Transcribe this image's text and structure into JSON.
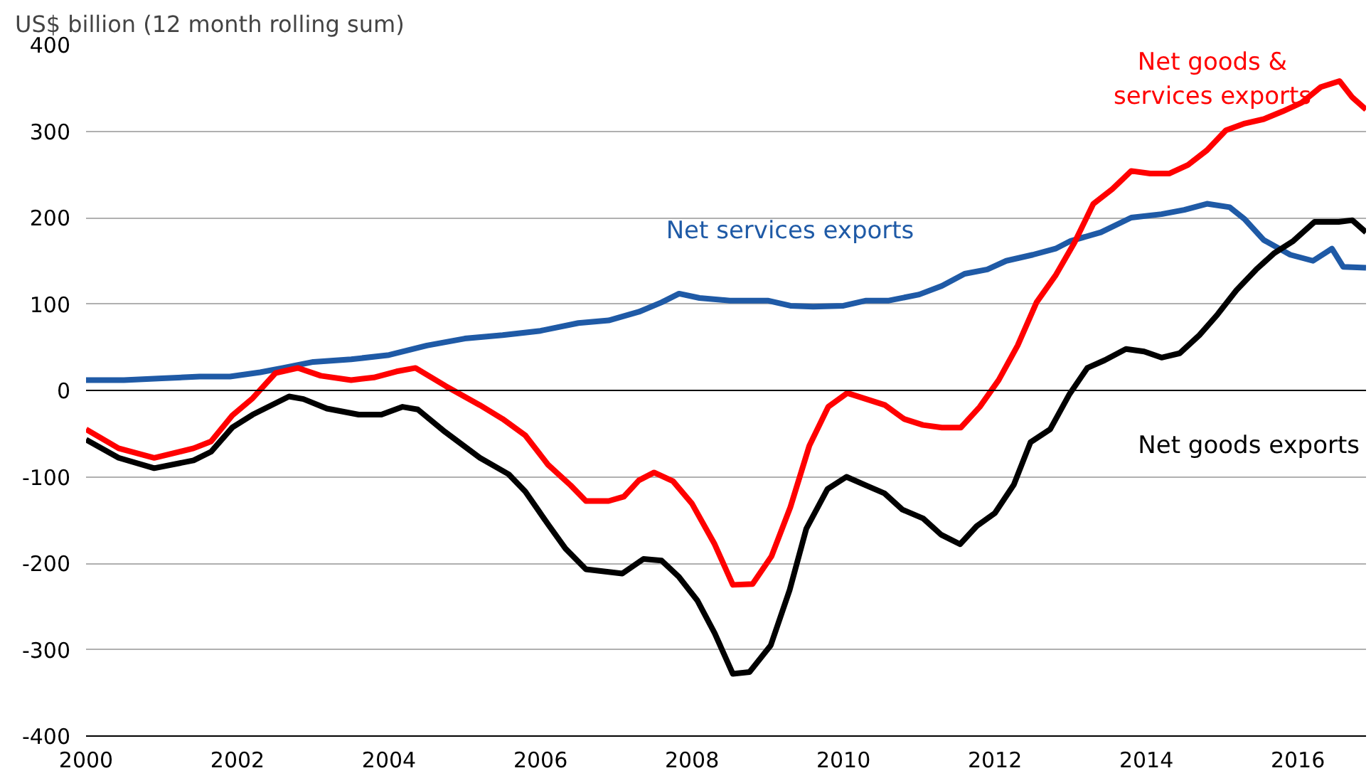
{
  "chart_data": {
    "type": "line",
    "ylabel": "US$ billion (12 month rolling sum)",
    "xlim": [
      2000,
      2016.9
    ],
    "xticks": [
      2000,
      2002,
      2004,
      2006,
      2008,
      2010,
      2012,
      2014,
      2016
    ],
    "ylim": [
      -400,
      400
    ],
    "yticks": [
      -400,
      -300,
      -200,
      -100,
      0,
      100,
      200,
      300,
      400
    ],
    "grid": "y",
    "legend": false,
    "line_style": "solid",
    "marker": "none",
    "ref_lines": [
      {
        "axis": "y",
        "value": 0,
        "color": "#000000"
      }
    ],
    "series": [
      {
        "name": "Net services exports",
        "color": "#1f5aa6",
        "x": [
          2000.0,
          2000.5,
          2001.0,
          2001.5,
          2001.9,
          2002.3,
          2002.6,
          2003.0,
          2003.5,
          2004.0,
          2004.5,
          2005.0,
          2005.5,
          2006.0,
          2006.5,
          2006.9,
          2007.3,
          2007.6,
          2007.83,
          2008.1,
          2008.5,
          2009.0,
          2009.3,
          2009.6,
          2010.0,
          2010.3,
          2010.6,
          2011.0,
          2011.3,
          2011.6,
          2011.9,
          2012.15,
          2012.5,
          2012.8,
          2013.0,
          2013.4,
          2013.8,
          2014.2,
          2014.5,
          2014.8,
          2015.1,
          2015.3,
          2015.55,
          2015.9,
          2016.2,
          2016.45,
          2016.6,
          2016.9
        ],
        "values": [
          12,
          12,
          14,
          16,
          16,
          21,
          26,
          33,
          36,
          41,
          52,
          60,
          64,
          69,
          78,
          81,
          91,
          102,
          112,
          107,
          104,
          104,
          98,
          97,
          98,
          104,
          104,
          111,
          121,
          135,
          140,
          150,
          157,
          164,
          173,
          183,
          200,
          204,
          209,
          216,
          212,
          198,
          174,
          157,
          150,
          164,
          143,
          142
        ]
      },
      {
        "name": "Net goods &\nservices exports",
        "color": "#ff0000",
        "x": [
          2000.0,
          2000.43,
          2000.9,
          2001.42,
          2001.65,
          2001.93,
          2002.2,
          2002.5,
          2002.8,
          2003.1,
          2003.5,
          2003.8,
          2004.1,
          2004.35,
          2004.75,
          2005.2,
          2005.5,
          2005.8,
          2006.1,
          2006.4,
          2006.6,
          2006.9,
          2007.1,
          2007.3,
          2007.5,
          2007.75,
          2008.0,
          2008.3,
          2008.54,
          2008.8,
          2009.05,
          2009.3,
          2009.55,
          2009.8,
          2010.05,
          2010.3,
          2010.55,
          2010.8,
          2011.05,
          2011.3,
          2011.55,
          2011.8,
          2012.05,
          2012.3,
          2012.55,
          2012.8,
          2013.05,
          2013.3,
          2013.55,
          2013.8,
          2014.05,
          2014.3,
          2014.55,
          2014.8,
          2015.05,
          2015.3,
          2015.55,
          2015.8,
          2016.05,
          2016.3,
          2016.55,
          2016.72,
          2016.9
        ],
        "values": [
          -45,
          -67,
          -78,
          -67,
          -59,
          -29,
          -9,
          20,
          26,
          17,
          12,
          15,
          22,
          26,
          5,
          -17,
          -33,
          -52,
          -86,
          -110,
          -128,
          -128,
          -123,
          -104,
          -95,
          -105,
          -131,
          -178,
          -225,
          -224,
          -192,
          -135,
          -64,
          -19,
          -3,
          -10,
          -17,
          -33,
          -40,
          -43,
          -43,
          -19,
          12,
          52,
          102,
          133,
          171,
          216,
          233,
          254,
          251,
          251,
          261,
          278,
          301,
          309,
          314,
          323,
          333,
          351,
          358,
          339,
          325
        ]
      },
      {
        "name": "Net goods exports",
        "color": "#000000",
        "x": [
          2000.0,
          2000.43,
          2000.9,
          2001.42,
          2001.65,
          2001.93,
          2002.2,
          2002.68,
          2002.87,
          2003.18,
          2003.6,
          2003.9,
          2004.18,
          2004.38,
          2004.74,
          2005.2,
          2005.58,
          2005.8,
          2006.1,
          2006.33,
          2006.6,
          2007.08,
          2007.36,
          2007.6,
          2007.83,
          2008.07,
          2008.3,
          2008.54,
          2008.76,
          2009.04,
          2009.29,
          2009.51,
          2009.79,
          2010.04,
          2010.3,
          2010.54,
          2010.78,
          2011.05,
          2011.29,
          2011.54,
          2011.76,
          2012.0,
          2012.25,
          2012.47,
          2012.73,
          2012.98,
          2013.22,
          2013.45,
          2013.73,
          2013.97,
          2014.2,
          2014.44,
          2014.7,
          2014.94,
          2015.19,
          2015.45,
          2015.69,
          2015.94,
          2016.22,
          2016.54,
          2016.72,
          2016.9
        ],
        "values": [
          -57,
          -78,
          -90,
          -81,
          -71,
          -43,
          -28,
          -7,
          -10,
          -21,
          -28,
          -28,
          -19,
          -22,
          -48,
          -78,
          -97,
          -117,
          -155,
          -183,
          -207,
          -212,
          -195,
          -197,
          -216,
          -243,
          -281,
          -328,
          -326,
          -295,
          -231,
          -160,
          -114,
          -100,
          -110,
          -119,
          -138,
          -148,
          -167,
          -178,
          -157,
          -142,
          -109,
          -60,
          -45,
          -5,
          26,
          35,
          48,
          45,
          38,
          43,
          64,
          88,
          116,
          140,
          159,
          173,
          195,
          195,
          197,
          183
        ]
      }
    ]
  }
}
